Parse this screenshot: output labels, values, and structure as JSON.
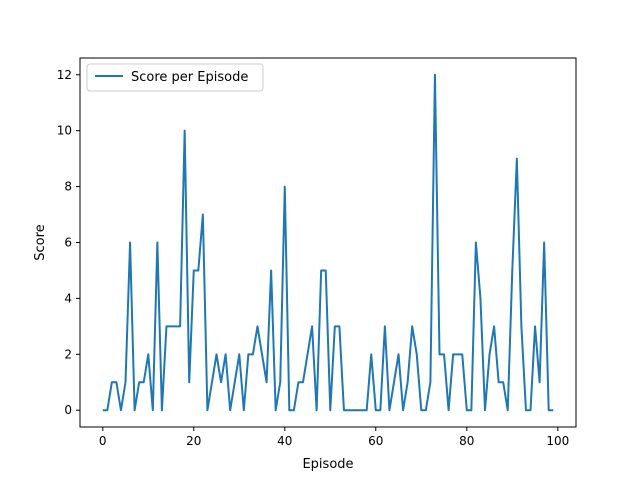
{
  "chart_data": {
    "type": "line",
    "xlabel": "Episode",
    "ylabel": "Score",
    "xlim": [
      -5,
      104
    ],
    "ylim": [
      -0.6,
      12.6
    ],
    "xticks": [
      0,
      20,
      40,
      60,
      80,
      100
    ],
    "yticks": [
      0,
      2,
      4,
      6,
      8,
      10,
      12
    ],
    "grid": false,
    "legend_position": "top-left",
    "series": [
      {
        "name": "Score per Episode",
        "color": "#1f77b4",
        "x": [
          0,
          1,
          2,
          3,
          4,
          5,
          6,
          7,
          8,
          9,
          10,
          11,
          12,
          13,
          14,
          15,
          16,
          17,
          18,
          19,
          20,
          21,
          22,
          23,
          24,
          25,
          26,
          27,
          28,
          29,
          30,
          31,
          32,
          33,
          34,
          35,
          36,
          37,
          38,
          39,
          40,
          41,
          42,
          43,
          44,
          45,
          46,
          47,
          48,
          49,
          50,
          51,
          52,
          53,
          54,
          55,
          56,
          57,
          58,
          59,
          60,
          61,
          62,
          63,
          64,
          65,
          66,
          67,
          68,
          69,
          70,
          71,
          72,
          73,
          74,
          75,
          76,
          77,
          78,
          79,
          80,
          81,
          82,
          83,
          84,
          85,
          86,
          87,
          88,
          89,
          90,
          91,
          92,
          93,
          94,
          95,
          96,
          97,
          98,
          99
        ],
        "values": [
          0,
          0,
          1,
          1,
          0,
          1,
          6,
          0,
          1,
          1,
          2,
          0,
          6,
          0,
          3,
          3,
          3,
          3,
          10,
          1,
          5,
          5,
          7,
          0,
          1,
          2,
          1,
          2,
          0,
          1,
          2,
          0,
          2,
          2,
          3,
          2,
          1,
          5,
          0,
          1,
          8,
          0,
          0,
          1,
          1,
          2,
          3,
          0,
          5,
          5,
          0,
          3,
          3,
          0,
          0,
          0,
          0,
          0,
          0,
          2,
          0,
          0,
          3,
          0,
          1,
          2,
          0,
          1,
          3,
          2,
          0,
          0,
          1,
          12,
          2,
          2,
          0,
          2,
          2,
          2,
          0,
          0,
          6,
          4,
          0,
          2,
          3,
          1,
          1,
          0,
          5,
          9,
          3,
          0,
          0,
          3,
          1,
          6,
          0,
          0
        ]
      }
    ]
  }
}
